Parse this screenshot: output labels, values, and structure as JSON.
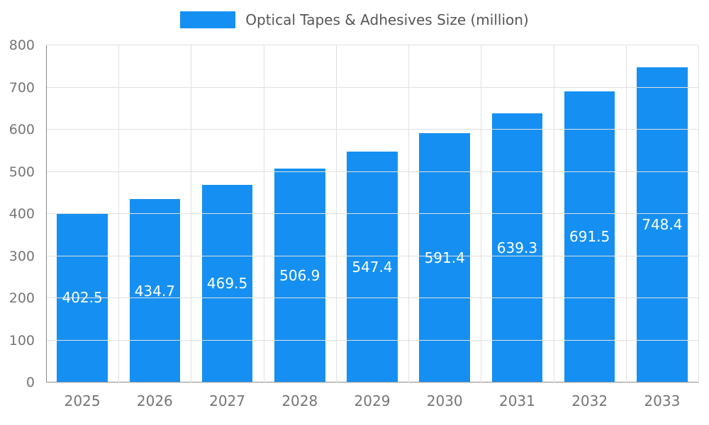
{
  "legend": {
    "label": "Optical Tapes & Adhesives Size (million)"
  },
  "chart_data": {
    "type": "bar",
    "title": "Optical Tapes & Adhesives Size (million)",
    "categories": [
      "2025",
      "2026",
      "2027",
      "2028",
      "2029",
      "2030",
      "2031",
      "2032",
      "2033"
    ],
    "values": [
      402.5,
      434.7,
      469.5,
      506.9,
      547.4,
      591.4,
      639.3,
      691.5,
      748.4
    ],
    "xlabel": "",
    "ylabel": "",
    "ylim": [
      0,
      800
    ],
    "ytick_step": 100,
    "grid": true,
    "legend_position": "top",
    "value_label_decimals": 1,
    "colors": {
      "bar": "#1590f2",
      "value_label": "#ffffff",
      "axis_text": "#757575",
      "grid_line": "#e0e0e0",
      "axis_line": "#8a8a8a",
      "title_text": "#565656"
    }
  }
}
